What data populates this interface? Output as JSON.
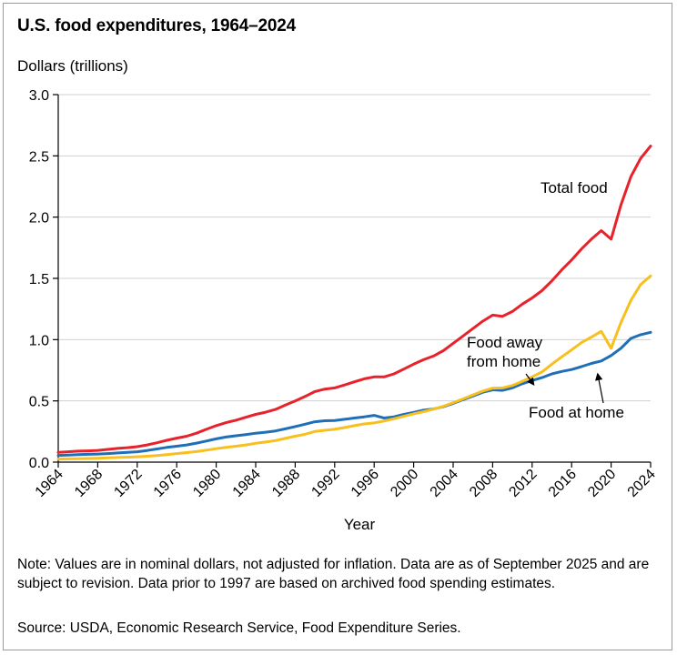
{
  "chart_data": {
    "type": "line",
    "title": "U.S. food expenditures, 1964–2024",
    "ylabel": "Dollars (trillions)",
    "xlabel": "Year",
    "xlim": [
      1964,
      2024
    ],
    "ylim": [
      0,
      3.0
    ],
    "yticks": [
      0.0,
      0.5,
      1.0,
      1.5,
      2.0,
      2.5,
      3.0
    ],
    "ytick_labels": [
      "0.0",
      "0.5",
      "1.0",
      "1.5",
      "2.0",
      "2.5",
      "3.0"
    ],
    "xticks": [
      1964,
      1968,
      1972,
      1976,
      1980,
      1984,
      1988,
      1992,
      1996,
      2000,
      2004,
      2008,
      2012,
      2016,
      2020,
      2024
    ],
    "grid": "horizontal",
    "x": [
      1964,
      1965,
      1966,
      1967,
      1968,
      1969,
      1970,
      1971,
      1972,
      1973,
      1974,
      1975,
      1976,
      1977,
      1978,
      1979,
      1980,
      1981,
      1982,
      1983,
      1984,
      1985,
      1986,
      1987,
      1988,
      1989,
      1990,
      1991,
      1992,
      1993,
      1994,
      1995,
      1996,
      1997,
      1998,
      1999,
      2000,
      2001,
      2002,
      2003,
      2004,
      2005,
      2006,
      2007,
      2008,
      2009,
      2010,
      2011,
      2012,
      2013,
      2014,
      2015,
      2016,
      2017,
      2018,
      2019,
      2020,
      2021,
      2022,
      2023,
      2024
    ],
    "series": [
      {
        "name": "Total food",
        "color": "#e8222b",
        "values": [
          0.08,
          0.085,
          0.09,
          0.092,
          0.096,
          0.104,
          0.112,
          0.118,
          0.126,
          0.14,
          0.158,
          0.178,
          0.196,
          0.212,
          0.236,
          0.268,
          0.298,
          0.322,
          0.342,
          0.366,
          0.39,
          0.408,
          0.43,
          0.466,
          0.5,
          0.536,
          0.576,
          0.596,
          0.606,
          0.63,
          0.656,
          0.68,
          0.696,
          0.696,
          0.72,
          0.76,
          0.8,
          0.836,
          0.866,
          0.91,
          0.97,
          1.03,
          1.09,
          1.15,
          1.2,
          1.19,
          1.23,
          1.29,
          1.34,
          1.4,
          1.48,
          1.57,
          1.65,
          1.74,
          1.82,
          1.89,
          1.82,
          2.1,
          2.33,
          2.48,
          2.58
        ]
      },
      {
        "name": "Food at home",
        "color": "#1f6fb8",
        "values": [
          0.055,
          0.058,
          0.062,
          0.064,
          0.066,
          0.07,
          0.075,
          0.08,
          0.085,
          0.095,
          0.108,
          0.12,
          0.13,
          0.14,
          0.155,
          0.172,
          0.19,
          0.205,
          0.215,
          0.225,
          0.236,
          0.244,
          0.255,
          0.272,
          0.29,
          0.31,
          0.33,
          0.338,
          0.34,
          0.35,
          0.36,
          0.37,
          0.382,
          0.36,
          0.37,
          0.39,
          0.406,
          0.424,
          0.434,
          0.452,
          0.48,
          0.51,
          0.54,
          0.57,
          0.59,
          0.586,
          0.606,
          0.64,
          0.666,
          0.69,
          0.72,
          0.74,
          0.756,
          0.78,
          0.806,
          0.826,
          0.87,
          0.93,
          1.01,
          1.04,
          1.06
        ]
      },
      {
        "name": "Food away from home",
        "color": "#f7c01f",
        "values": [
          0.025,
          0.027,
          0.028,
          0.03,
          0.032,
          0.035,
          0.038,
          0.04,
          0.044,
          0.048,
          0.054,
          0.062,
          0.07,
          0.078,
          0.086,
          0.098,
          0.11,
          0.12,
          0.13,
          0.14,
          0.154,
          0.164,
          0.176,
          0.194,
          0.212,
          0.228,
          0.25,
          0.26,
          0.268,
          0.282,
          0.298,
          0.312,
          0.32,
          0.336,
          0.354,
          0.374,
          0.394,
          0.412,
          0.432,
          0.456,
          0.486,
          0.516,
          0.548,
          0.58,
          0.604,
          0.606,
          0.626,
          0.66,
          0.696,
          0.736,
          0.8,
          0.86,
          0.916,
          0.976,
          1.02,
          1.068,
          0.93,
          1.14,
          1.32,
          1.45,
          1.52
        ]
      }
    ],
    "annotations": [
      {
        "lines": [
          "Total food"
        ]
      },
      {
        "lines": [
          "Food away",
          "from home"
        ]
      },
      {
        "lines": [
          "Food at home"
        ]
      }
    ]
  },
  "notes": {
    "note": "Note: Values are in nominal dollars, not adjusted for inflation. Data are as of September 2025 and are subject to revision. Data prior to 1997 are based on archived food spending estimates.",
    "source": "Source: USDA, Economic Research Service, Food Expenditure Series."
  }
}
